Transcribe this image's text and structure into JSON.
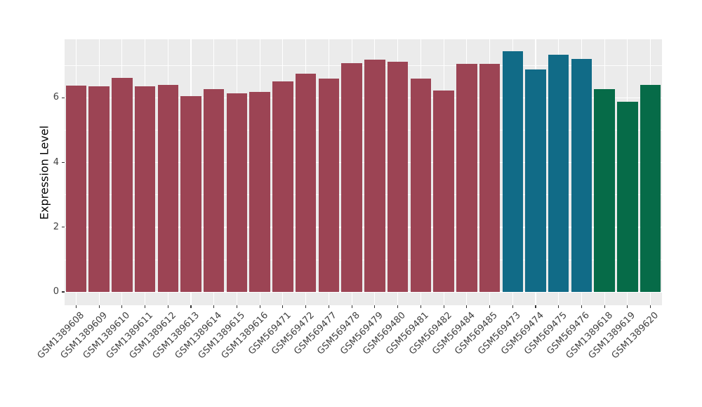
{
  "chart_data": {
    "type": "bar",
    "title": "",
    "xlabel": "",
    "ylabel": "Expression Level",
    "ylim": [
      0,
      7.8
    ],
    "yticks": [
      0,
      2,
      4,
      6
    ],
    "yticks_minor": [
      1,
      3,
      5,
      7
    ],
    "grid": "on",
    "legend": "none",
    "categories": [
      "GSM1389608",
      "GSM1389609",
      "GSM1389610",
      "GSM1389611",
      "GSM1389612",
      "GSM1389613",
      "GSM1389614",
      "GSM1389615",
      "GSM1389616",
      "GSM569471",
      "GSM569472",
      "GSM569477",
      "GSM569478",
      "GSM569479",
      "GSM569480",
      "GSM569481",
      "GSM569482",
      "GSM569484",
      "GSM569485",
      "GSM569473",
      "GSM569474",
      "GSM569475",
      "GSM569476",
      "GSM1389618",
      "GSM1389619",
      "GSM1389620"
    ],
    "values": [
      6.38,
      6.36,
      6.62,
      6.36,
      6.41,
      6.06,
      6.28,
      6.13,
      6.18,
      6.5,
      6.74,
      6.59,
      7.07,
      7.17,
      7.12,
      6.6,
      6.23,
      7.04,
      7.06,
      7.43,
      6.88,
      7.33,
      7.21,
      6.26,
      5.88,
      6.39
    ],
    "groups": [
      "maroon",
      "maroon",
      "maroon",
      "maroon",
      "maroon",
      "maroon",
      "maroon",
      "maroon",
      "maroon",
      "maroon",
      "maroon",
      "maroon",
      "maroon",
      "maroon",
      "maroon",
      "maroon",
      "maroon",
      "maroon",
      "maroon",
      "teal",
      "teal",
      "teal",
      "teal",
      "green",
      "green",
      "green"
    ],
    "group_colors": {
      "maroon": "#9C4454",
      "teal": "#116B87",
      "green": "#066B48"
    },
    "colors": {
      "panel_background": "#EBEBEB",
      "gridline": "#FFFFFF",
      "axis_text": "#404040",
      "axis_tick": "#333333",
      "axis_title": "#000000"
    }
  }
}
